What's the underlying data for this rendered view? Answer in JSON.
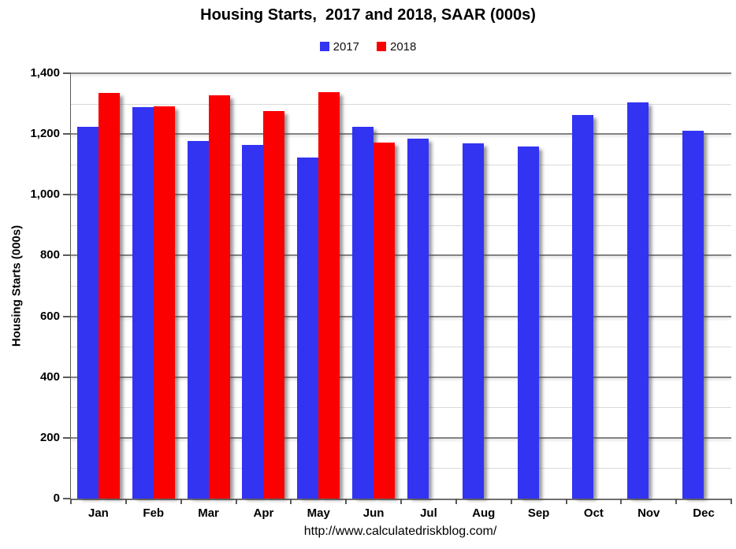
{
  "title": "Housing Starts,  2017 and 2018, SAAR (000s)",
  "footer_url": "http://www.calculatedriskblog.com/",
  "y_axis": {
    "title": "Housing Starts (000s)",
    "tick_labels": [
      "0",
      "200",
      "400",
      "600",
      "800",
      "1,000",
      "1,200",
      "1,400"
    ]
  },
  "legend": {
    "items": [
      {
        "label": "2017",
        "color": "#3333f2"
      },
      {
        "label": "2018",
        "color": "#fa0000"
      }
    ]
  },
  "colors": {
    "series_2017_blue": "#3333f2",
    "series_2018_red": "#fa0000",
    "major_gridline": "#848484",
    "minor_gridline": "#d9d9d9",
    "axis_line": "#595959",
    "text": "#000000",
    "background": "#ffffff"
  },
  "chart_data": {
    "type": "bar",
    "title": "Housing Starts,  2017 and 2018, SAAR (000s)",
    "xlabel": "",
    "ylabel": "Housing Starts (000s)",
    "ylim": [
      0,
      1400
    ],
    "ytick_step": 200,
    "minor_grid_step": 100,
    "grid": true,
    "legend_position": "top",
    "categories": [
      "Jan",
      "Feb",
      "Mar",
      "Apr",
      "May",
      "Jun",
      "Jul",
      "Aug",
      "Sep",
      "Oct",
      "Nov",
      "Dec"
    ],
    "series": [
      {
        "name": "2017",
        "color": "#3333f2",
        "values": [
          1225,
          1288,
          1178,
          1163,
          1122,
          1225,
          1184,
          1170,
          1158,
          1263,
          1303,
          1210
        ]
      },
      {
        "name": "2018",
        "color": "#fa0000",
        "values": [
          1334,
          1290,
          1327,
          1276,
          1337,
          1173,
          null,
          null,
          null,
          null,
          null,
          null
        ]
      }
    ]
  }
}
